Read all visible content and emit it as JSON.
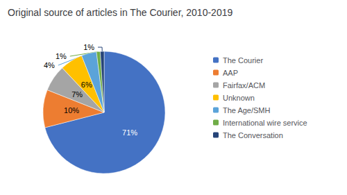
{
  "chart_data": {
    "type": "pie",
    "title": "Original source of articles in The Courier, 2010-2019",
    "categories": [
      "The Courier",
      "AAP",
      "Fairfax/ACM",
      "Unknown",
      "The Age/SMH",
      "International wire service",
      "The Conversation"
    ],
    "values": [
      71,
      10,
      7,
      6,
      4,
      1,
      1
    ],
    "value_labels": [
      "71%",
      "10%",
      "7%",
      "6%",
      "4%",
      "1%",
      "1%"
    ],
    "colors": [
      "#4472C4",
      "#ED7D31",
      "#A5A5A5",
      "#FFC000",
      "#5BA3D9",
      "#70AD47",
      "#264478"
    ],
    "data_labels": true,
    "legend": "right"
  }
}
